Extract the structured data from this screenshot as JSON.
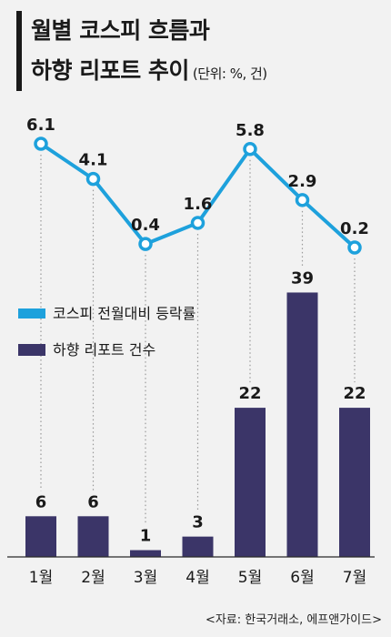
{
  "title": {
    "line1": "월별 코스피 흐름과",
    "line2": "하향 리포트 추이",
    "unit": "(단위: %, 건)"
  },
  "source": "<자료: 한국거래소, 에프앤가이드>",
  "colors": {
    "background": "#f2f2f2",
    "line": "#1ea1dc",
    "bar": "#3b3568",
    "text": "#1a1a1a",
    "dotted": "#9a9a9a"
  },
  "chart_data": {
    "type": "bar",
    "categories": [
      "1월",
      "2월",
      "3월",
      "4월",
      "5월",
      "6월",
      "7월"
    ],
    "series": [
      {
        "name": "코스피 전월대비 등락률",
        "type": "line",
        "values": [
          6.1,
          4.1,
          0.4,
          1.6,
          5.8,
          2.9,
          0.2
        ],
        "labels": [
          "6.1",
          "4.1",
          "0.4",
          "1.6",
          "5.8",
          "2.9",
          "0.2"
        ]
      },
      {
        "name": "하향 리포트 건수",
        "type": "bar",
        "values": [
          6,
          6,
          1,
          3,
          22,
          39,
          22
        ],
        "labels": [
          "6",
          "6",
          "1",
          "3",
          "22",
          "39",
          "22"
        ]
      }
    ],
    "legend_position": "left",
    "grid": false
  }
}
